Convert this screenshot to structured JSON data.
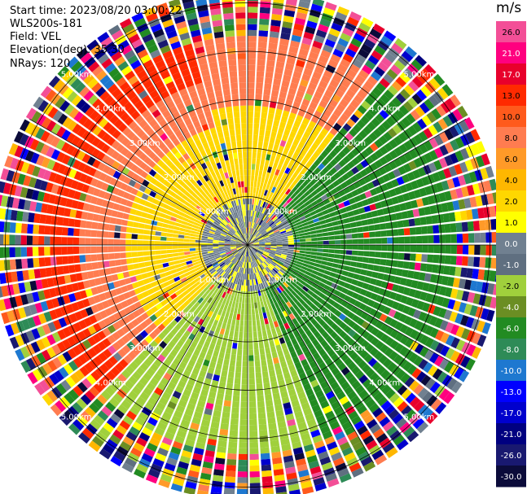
{
  "header": {
    "start_time": "Start time: 2023/08/20 03:00:22",
    "instrument": "WLS200s-181",
    "field": "Field: VEL",
    "elevation": "Elevation(deg): 35.30",
    "nrays": "NRays: 120"
  },
  "chart_data": {
    "type": "heatmap",
    "projection": "polar PPI",
    "nrays": 120,
    "range_rings_km": [
      1,
      2,
      3,
      4,
      5
    ],
    "range_ring_labels": [
      "1.00km",
      "2.00km",
      "3.00km",
      "4.00km",
      "5.00km"
    ],
    "max_range_km": 5.2,
    "azimuth_spokes_deg": [
      0,
      30,
      60,
      90,
      120,
      150,
      180,
      210,
      240,
      270,
      300,
      330
    ],
    "colorbar": {
      "unit": "m/s",
      "ticks": [
        "26.0",
        "21.0",
        "17.0",
        "13.0",
        "10.0",
        "8.0",
        "6.0",
        "4.0",
        "2.0",
        "1.0",
        "0.0",
        "-1.0",
        "-2.0",
        "-4.0",
        "-6.0",
        "-8.0",
        "-10.0",
        "-13.0",
        "-17.0",
        "-21.0",
        "-26.0",
        "-30.0"
      ],
      "colors": [
        "#f34f97",
        "#ff007f",
        "#e8002c",
        "#ff2a00",
        "#ff5a1c",
        "#ff7c50",
        "#ff9a28",
        "#ffb700",
        "#ffd700",
        "#ffff00",
        "#708090",
        "#5f6f80",
        "#a0d03c",
        "#6b8e23",
        "#228b22",
        "#2e8b57",
        "#1e78d0",
        "#0000ff",
        "#0000cd",
        "#000080",
        "#191970",
        "#0b0b3a"
      ]
    },
    "field_pattern": {
      "description_values": "velocity in m/s per region",
      "west_far": 13.0,
      "west_mid": 8.0,
      "north_west_near": 2.0,
      "east": -6.0,
      "south": -2.0,
      "center": 0.0,
      "outer_noise": "mixed"
    }
  }
}
